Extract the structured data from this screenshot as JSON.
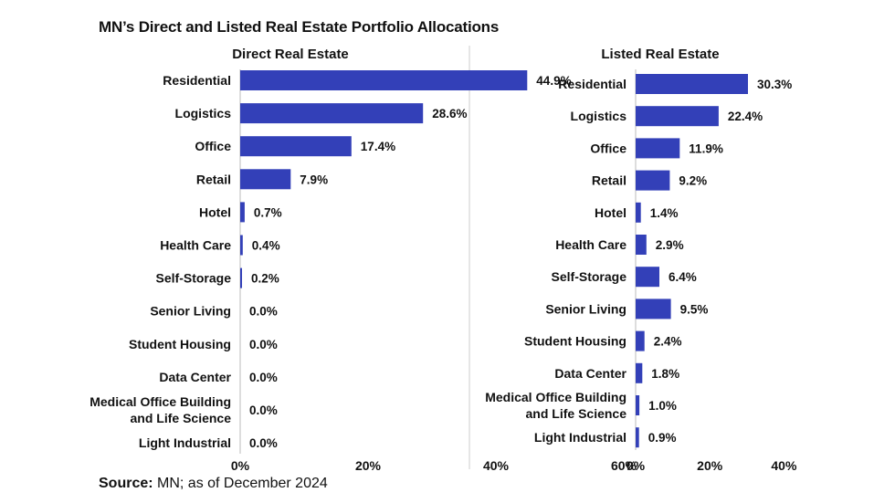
{
  "title": "MN’s Direct and Listed Real Estate Portfolio Allocations",
  "source": {
    "label": "Source:",
    "text": " MN; as of December 2024"
  },
  "colors": {
    "bar": "#3340b8",
    "axis": "#bbbbbb",
    "divider": "#cccccc",
    "text": "#111111"
  },
  "chart_data": [
    {
      "type": "bar",
      "orientation": "horizontal",
      "title": "Direct Real Estate",
      "categories": [
        [
          "Residential"
        ],
        [
          "Logistics"
        ],
        [
          "Office"
        ],
        [
          "Retail"
        ],
        [
          "Hotel"
        ],
        [
          "Health Care"
        ],
        [
          "Self-Storage"
        ],
        [
          "Senior Living"
        ],
        [
          "Student Housing"
        ],
        [
          "Data Center"
        ],
        [
          "Medical Office Building",
          "and Life Science"
        ],
        [
          "Light Industrial"
        ]
      ],
      "values": [
        44.9,
        28.6,
        17.4,
        7.9,
        0.7,
        0.4,
        0.2,
        0.0,
        0.0,
        0.0,
        0.0,
        0.0
      ],
      "value_labels": [
        "44.9%",
        "28.6%",
        "17.4%",
        "7.9%",
        "0.7%",
        "0.4%",
        "0.2%",
        "0.0%",
        "0.0%",
        "0.0%",
        "0.0%",
        "0.0%"
      ],
      "xlim": [
        0,
        60
      ],
      "x_ticks": [
        0,
        20,
        40,
        60
      ],
      "x_tick_labels": [
        "0%",
        "20%",
        "40%",
        "60%"
      ],
      "grid": false
    },
    {
      "type": "bar",
      "orientation": "horizontal",
      "title": "Listed Real Estate",
      "categories": [
        [
          "Residential"
        ],
        [
          "Logistics"
        ],
        [
          "Office"
        ],
        [
          "Retail"
        ],
        [
          "Hotel"
        ],
        [
          "Health Care"
        ],
        [
          "Self-Storage"
        ],
        [
          "Senior Living"
        ],
        [
          "Student Housing"
        ],
        [
          "Data Center"
        ],
        [
          "Medical Office Building",
          "and Life Science"
        ],
        [
          "Light Industrial"
        ]
      ],
      "values": [
        30.3,
        22.4,
        11.9,
        9.2,
        1.4,
        2.9,
        6.4,
        9.5,
        2.4,
        1.8,
        1.0,
        0.9
      ],
      "value_labels": [
        "30.3%",
        "22.4%",
        "11.9%",
        "9.2%",
        "1.4%",
        "2.9%",
        "6.4%",
        "9.5%",
        "2.4%",
        "1.8%",
        "1.0%",
        "0.9%"
      ],
      "xlim": [
        0,
        40
      ],
      "x_ticks": [
        0,
        20,
        40
      ],
      "x_tick_labels": [
        "0%",
        "20%",
        "40%"
      ],
      "grid": false
    }
  ]
}
